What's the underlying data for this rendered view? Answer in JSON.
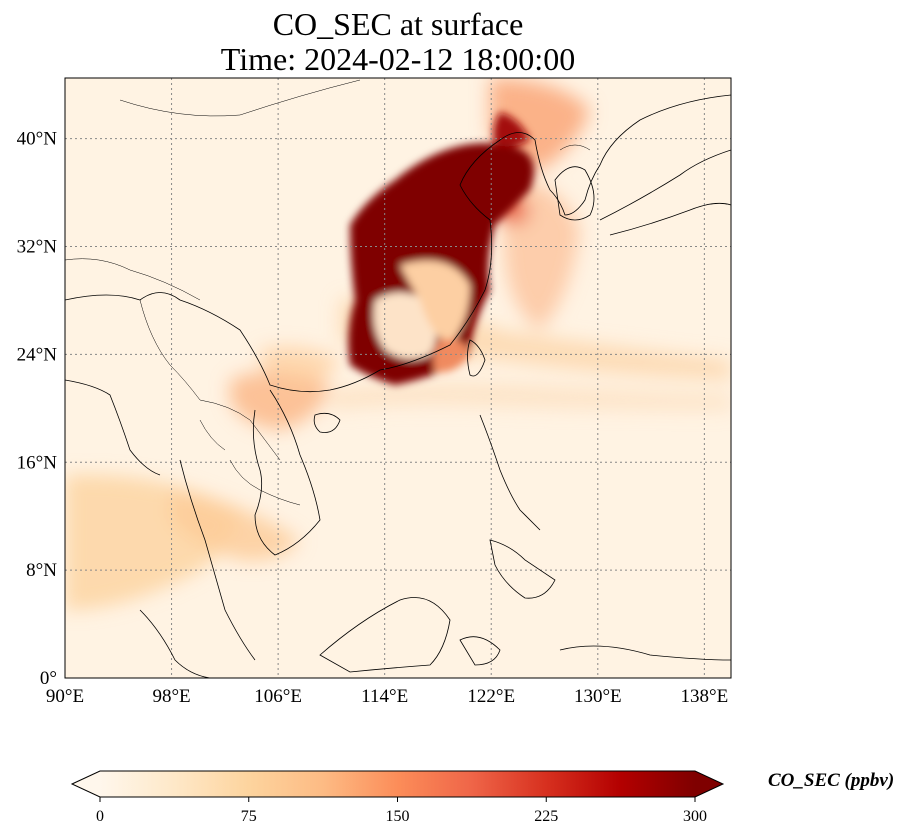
{
  "title": {
    "line1": "CO_SEC at surface",
    "line2": "Time: 2024-02-12 18:00:00"
  },
  "map": {
    "projection": "PlateCarree",
    "lon_range": [
      90,
      140
    ],
    "lat_range": [
      0,
      44.5
    ],
    "gridlines": "dotted gray",
    "x_ticks": [
      "90°E",
      "98°E",
      "106°E",
      "114°E",
      "122°E",
      "130°E",
      "138°E"
    ],
    "y_ticks": [
      "0°",
      "8°N",
      "16°N",
      "24°N",
      "32°N",
      "40°N"
    ],
    "colormap": "OrRd",
    "colors": {
      "low": "#fff7ec",
      "mid": "#fdbb84",
      "high": "#d7301f",
      "max": "#7f0000"
    }
  },
  "colorbar": {
    "label": "CO_SEC (ppbv)",
    "ticks": [
      "0",
      "75",
      "150",
      "225",
      "300"
    ],
    "range": [
      0,
      300
    ],
    "extend": "both"
  }
}
